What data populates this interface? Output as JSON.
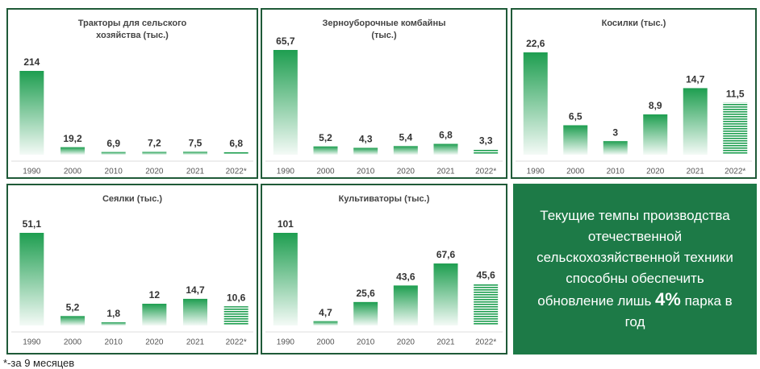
{
  "chart_data": [
    {
      "type": "bar",
      "title": "Тракторы для сельского хозяйства (тыс.)",
      "color": "#1e9e50",
      "categories": [
        "1990",
        "2000",
        "2010",
        "2020",
        "2021",
        "2022*"
      ],
      "values": [
        214,
        19.2,
        6.9,
        7.2,
        7.5,
        6.8
      ],
      "value_labels": [
        "214",
        "19,2",
        "6,9",
        "7,2",
        "7,5",
        "6,8"
      ]
    },
    {
      "type": "bar",
      "title": "Зерноуборочные комбайны (тыс.)",
      "color": "#1e9e50",
      "categories": [
        "1990",
        "2000",
        "2010",
        "2020",
        "2021",
        "2022*"
      ],
      "values": [
        65.7,
        5.2,
        4.3,
        5.4,
        6.8,
        3.3
      ],
      "value_labels": [
        "65,7",
        "5,2",
        "4,3",
        "5,4",
        "6,8",
        "3,3"
      ]
    },
    {
      "type": "bar",
      "title": "Косилки (тыс.)",
      "color": "#1e9e50",
      "categories": [
        "1990",
        "2000",
        "2010",
        "2020",
        "2021",
        "2022*"
      ],
      "values": [
        22.6,
        6.5,
        3,
        8.9,
        14.7,
        11.5
      ],
      "value_labels": [
        "22,6",
        "6,5",
        "3",
        "8,9",
        "14,7",
        "11,5"
      ]
    },
    {
      "type": "bar",
      "title": "Сеялки (тыс.)",
      "color": "#1e9e50",
      "categories": [
        "1990",
        "2000",
        "2010",
        "2020",
        "2021",
        "2022*"
      ],
      "values": [
        51.1,
        5.2,
        1.8,
        12,
        14.7,
        10.6
      ],
      "value_labels": [
        "51,1",
        "5,2",
        "1,8",
        "12",
        "14,7",
        "10,6"
      ]
    },
    {
      "type": "bar",
      "title": "Культиваторы (тыс.)",
      "color": "#1e9e50",
      "categories": [
        "1990",
        "2000",
        "2010",
        "2020",
        "2021",
        "2022*"
      ],
      "values": [
        101,
        4.7,
        25.6,
        43.6,
        67.6,
        45.6
      ],
      "value_labels": [
        "101",
        "4,7",
        "25,6",
        "43,6",
        "67,6",
        "45,6"
      ]
    }
  ],
  "callout": {
    "text": "Текущие темпы производства отечественной сельскохозяйственной техники способны обеспечить обновление лишь",
    "highlight": "4%",
    "text_after": "парка в год"
  },
  "footnote": "*-за 9 месяцев"
}
